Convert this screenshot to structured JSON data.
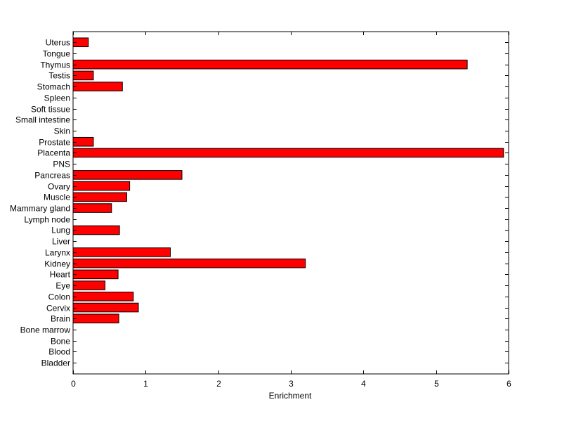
{
  "chart_data": {
    "type": "bar",
    "orientation": "horizontal",
    "title": "",
    "xlabel": "Enrichment",
    "ylabel": "",
    "xlim": [
      0,
      6
    ],
    "xticks": [
      0,
      1,
      2,
      3,
      4,
      5,
      6
    ],
    "grid": false,
    "legend": "none",
    "bar_color": "#ff0000",
    "edge_color": "#000000",
    "categories": [
      "Uterus",
      "Tongue",
      "Thymus",
      "Testis",
      "Stomach",
      "Spleen",
      "Soft tissue",
      "Small intestine",
      "Skin",
      "Prostate",
      "Placenta",
      "PNS",
      "Pancreas",
      "Ovary",
      "Muscle",
      "Mammary gland",
      "Lymph node",
      "Lung",
      "Liver",
      "Larynx",
      "Kidney",
      "Heart",
      "Eye",
      "Colon",
      "Cervix",
      "Brain",
      "Bone marrow",
      "Bone",
      "Blood",
      "Bladder"
    ],
    "values": [
      0.21,
      0,
      5.43,
      0.28,
      0.68,
      0,
      0,
      0,
      0,
      0.28,
      5.93,
      0,
      1.5,
      0.78,
      0.74,
      0.53,
      0,
      0.64,
      0,
      1.34,
      3.2,
      0.62,
      0.44,
      0.83,
      0.9,
      0.63,
      0,
      0,
      0,
      0
    ]
  }
}
